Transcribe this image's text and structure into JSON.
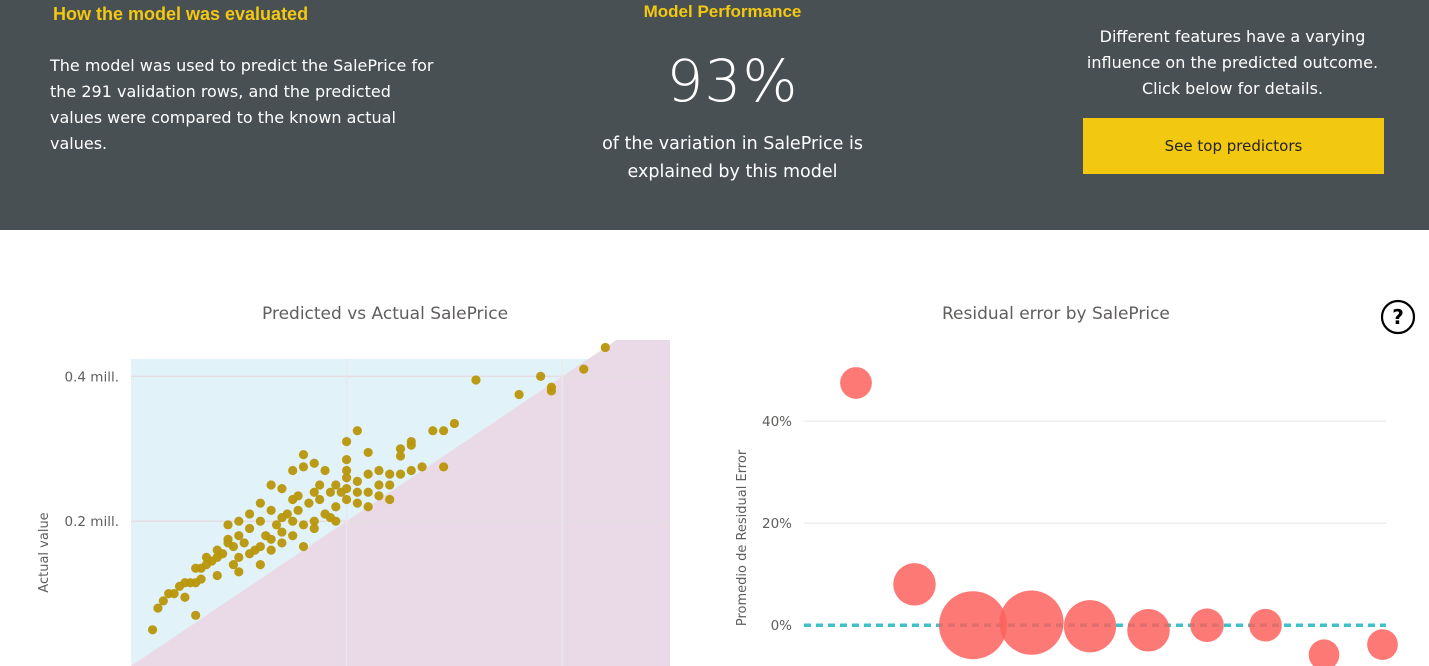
{
  "header": {
    "evaluation": {
      "title": "How the model was evaluated",
      "text": "The model was used to predict the SalePrice for the 291 validation rows, and the predicted values were compared to the known actual values."
    },
    "performance": {
      "title": "Model Performance",
      "value": "93%",
      "caption": "of the variation in SalePrice is explained by this model"
    },
    "features": {
      "text": "Different features have a varying influence on the predicted outcome. Click below for details.",
      "button_label": "See top predictors"
    }
  },
  "help": {
    "icon": "question-circle-icon",
    "glyph": "?"
  },
  "colors": {
    "header_bg": "#495053",
    "accent": "#f2c811",
    "scatter_point": "#b8960a",
    "scatter_upper_region": "#e1f2f9",
    "scatter_lower_region": "#ead9e6",
    "bubble": "#fd625e",
    "zero_line": "#3fc1c9"
  },
  "chart_data": [
    {
      "type": "scatter",
      "title": "Predicted vs Actual SalePrice",
      "ylabel": "Actual value",
      "xlabel": "",
      "ylim": [
        0,
        0.5
      ],
      "xlim": [
        0,
        0.5
      ],
      "y_ticks": [
        {
          "value": 0.2,
          "label": "0.2 mill."
        },
        {
          "value": 0.4,
          "label": "0.4 mill."
        }
      ],
      "grid": true,
      "regions": [
        "actual above predicted",
        "actual below predicted"
      ],
      "points": [
        [
          0.44,
          0.44
        ],
        [
          0.42,
          0.41
        ],
        [
          0.39,
          0.385
        ],
        [
          0.39,
          0.38
        ],
        [
          0.38,
          0.4
        ],
        [
          0.36,
          0.375
        ],
        [
          0.32,
          0.395
        ],
        [
          0.3,
          0.335
        ],
        [
          0.29,
          0.325
        ],
        [
          0.28,
          0.325
        ],
        [
          0.29,
          0.275
        ],
        [
          0.26,
          0.305
        ],
        [
          0.26,
          0.31
        ],
        [
          0.25,
          0.3
        ],
        [
          0.25,
          0.29
        ],
        [
          0.21,
          0.325
        ],
        [
          0.2,
          0.285
        ],
        [
          0.2,
          0.27
        ],
        [
          0.18,
          0.27
        ],
        [
          0.22,
          0.295
        ],
        [
          0.16,
          0.292
        ],
        [
          0.2,
          0.31
        ],
        [
          0.24,
          0.265
        ],
        [
          0.14,
          0.245
        ],
        [
          0.16,
          0.275
        ],
        [
          0.17,
          0.28
        ],
        [
          0.15,
          0.27
        ],
        [
          0.13,
          0.25
        ],
        [
          0.15,
          0.2
        ],
        [
          0.14,
          0.205
        ],
        [
          0.12,
          0.225
        ],
        [
          0.13,
          0.215
        ],
        [
          0.1,
          0.2
        ],
        [
          0.12,
          0.2
        ],
        [
          0.11,
          0.19
        ],
        [
          0.1,
          0.18
        ],
        [
          0.09,
          0.17
        ],
        [
          0.08,
          0.16
        ],
        [
          0.09,
          0.175
        ],
        [
          0.07,
          0.15
        ],
        [
          0.06,
          0.135
        ],
        [
          0.05,
          0.115
        ],
        [
          0.04,
          0.1
        ],
        [
          0.05,
          0.095
        ],
        [
          0.03,
          0.09
        ],
        [
          0.06,
          0.115
        ],
        [
          0.07,
          0.14
        ],
        [
          0.08,
          0.15
        ],
        [
          0.065,
          0.135
        ],
        [
          0.1,
          0.15
        ],
        [
          0.12,
          0.165
        ],
        [
          0.13,
          0.175
        ],
        [
          0.14,
          0.185
        ],
        [
          0.16,
          0.195
        ],
        [
          0.17,
          0.2
        ],
        [
          0.18,
          0.21
        ],
        [
          0.19,
          0.22
        ],
        [
          0.2,
          0.23
        ],
        [
          0.21,
          0.24
        ],
        [
          0.22,
          0.24
        ],
        [
          0.23,
          0.25
        ],
        [
          0.24,
          0.25
        ],
        [
          0.11,
          0.21
        ],
        [
          0.09,
          0.195
        ],
        [
          0.15,
          0.23
        ],
        [
          0.17,
          0.24
        ],
        [
          0.19,
          0.25
        ],
        [
          0.2,
          0.26
        ],
        [
          0.21,
          0.255
        ],
        [
          0.22,
          0.265
        ],
        [
          0.23,
          0.27
        ],
        [
          0.115,
          0.16
        ],
        [
          0.125,
          0.18
        ],
        [
          0.135,
          0.195
        ],
        [
          0.145,
          0.21
        ],
        [
          0.155,
          0.215
        ],
        [
          0.165,
          0.225
        ],
        [
          0.175,
          0.23
        ],
        [
          0.185,
          0.24
        ],
        [
          0.195,
          0.24
        ],
        [
          0.105,
          0.17
        ],
        [
          0.095,
          0.165
        ],
        [
          0.085,
          0.155
        ],
        [
          0.075,
          0.145
        ],
        [
          0.065,
          0.12
        ],
        [
          0.055,
          0.115
        ],
        [
          0.045,
          0.11
        ],
        [
          0.035,
          0.1
        ],
        [
          0.025,
          0.08
        ],
        [
          0.1,
          0.13
        ],
        [
          0.06,
          0.07
        ],
        [
          0.02,
          0.05
        ],
        [
          0.155,
          0.235
        ],
        [
          0.175,
          0.25
        ],
        [
          0.2,
          0.245
        ],
        [
          0.185,
          0.205
        ],
        [
          0.16,
          0.165
        ],
        [
          0.14,
          0.17
        ],
        [
          0.12,
          0.14
        ],
        [
          0.08,
          0.125
        ],
        [
          0.095,
          0.14
        ],
        [
          0.13,
          0.16
        ],
        [
          0.11,
          0.155
        ],
        [
          0.15,
          0.18
        ],
        [
          0.17,
          0.19
        ],
        [
          0.19,
          0.2
        ],
        [
          0.21,
          0.225
        ],
        [
          0.22,
          0.22
        ],
        [
          0.24,
          0.23
        ],
        [
          0.26,
          0.27
        ],
        [
          0.27,
          0.275
        ],
        [
          0.25,
          0.265
        ],
        [
          0.23,
          0.235
        ]
      ]
    },
    {
      "type": "scatter",
      "title": "Residual error by SalePrice",
      "ylabel": "Promedio de Residual Error",
      "xlabel": "",
      "ylim": [
        -0.08,
        0.52
      ],
      "y_ticks": [
        {
          "value": 0.0,
          "label": "0%"
        },
        {
          "value": 0.2,
          "label": "20%"
        },
        {
          "value": 0.4,
          "label": "40%"
        }
      ],
      "grid": true,
      "reference_line": 0.0,
      "bubbles": [
        {
          "bin": 1,
          "value": 0.475,
          "weight": 0.06
        },
        {
          "bin": 2,
          "value": 0.08,
          "weight": 0.22
        },
        {
          "bin": 3,
          "value": 0.0,
          "weight": 1.0
        },
        {
          "bin": 4,
          "value": 0.005,
          "weight": 0.85
        },
        {
          "bin": 5,
          "value": -0.002,
          "weight": 0.45
        },
        {
          "bin": 6,
          "value": -0.01,
          "weight": 0.22
        },
        {
          "bin": 7,
          "value": 0.0,
          "weight": 0.08
        },
        {
          "bin": 8,
          "value": 0.0,
          "weight": 0.07
        },
        {
          "bin": 9,
          "value": -0.058,
          "weight": 0.05
        },
        {
          "bin": 10,
          "value": -0.038,
          "weight": 0.05
        }
      ]
    }
  ]
}
